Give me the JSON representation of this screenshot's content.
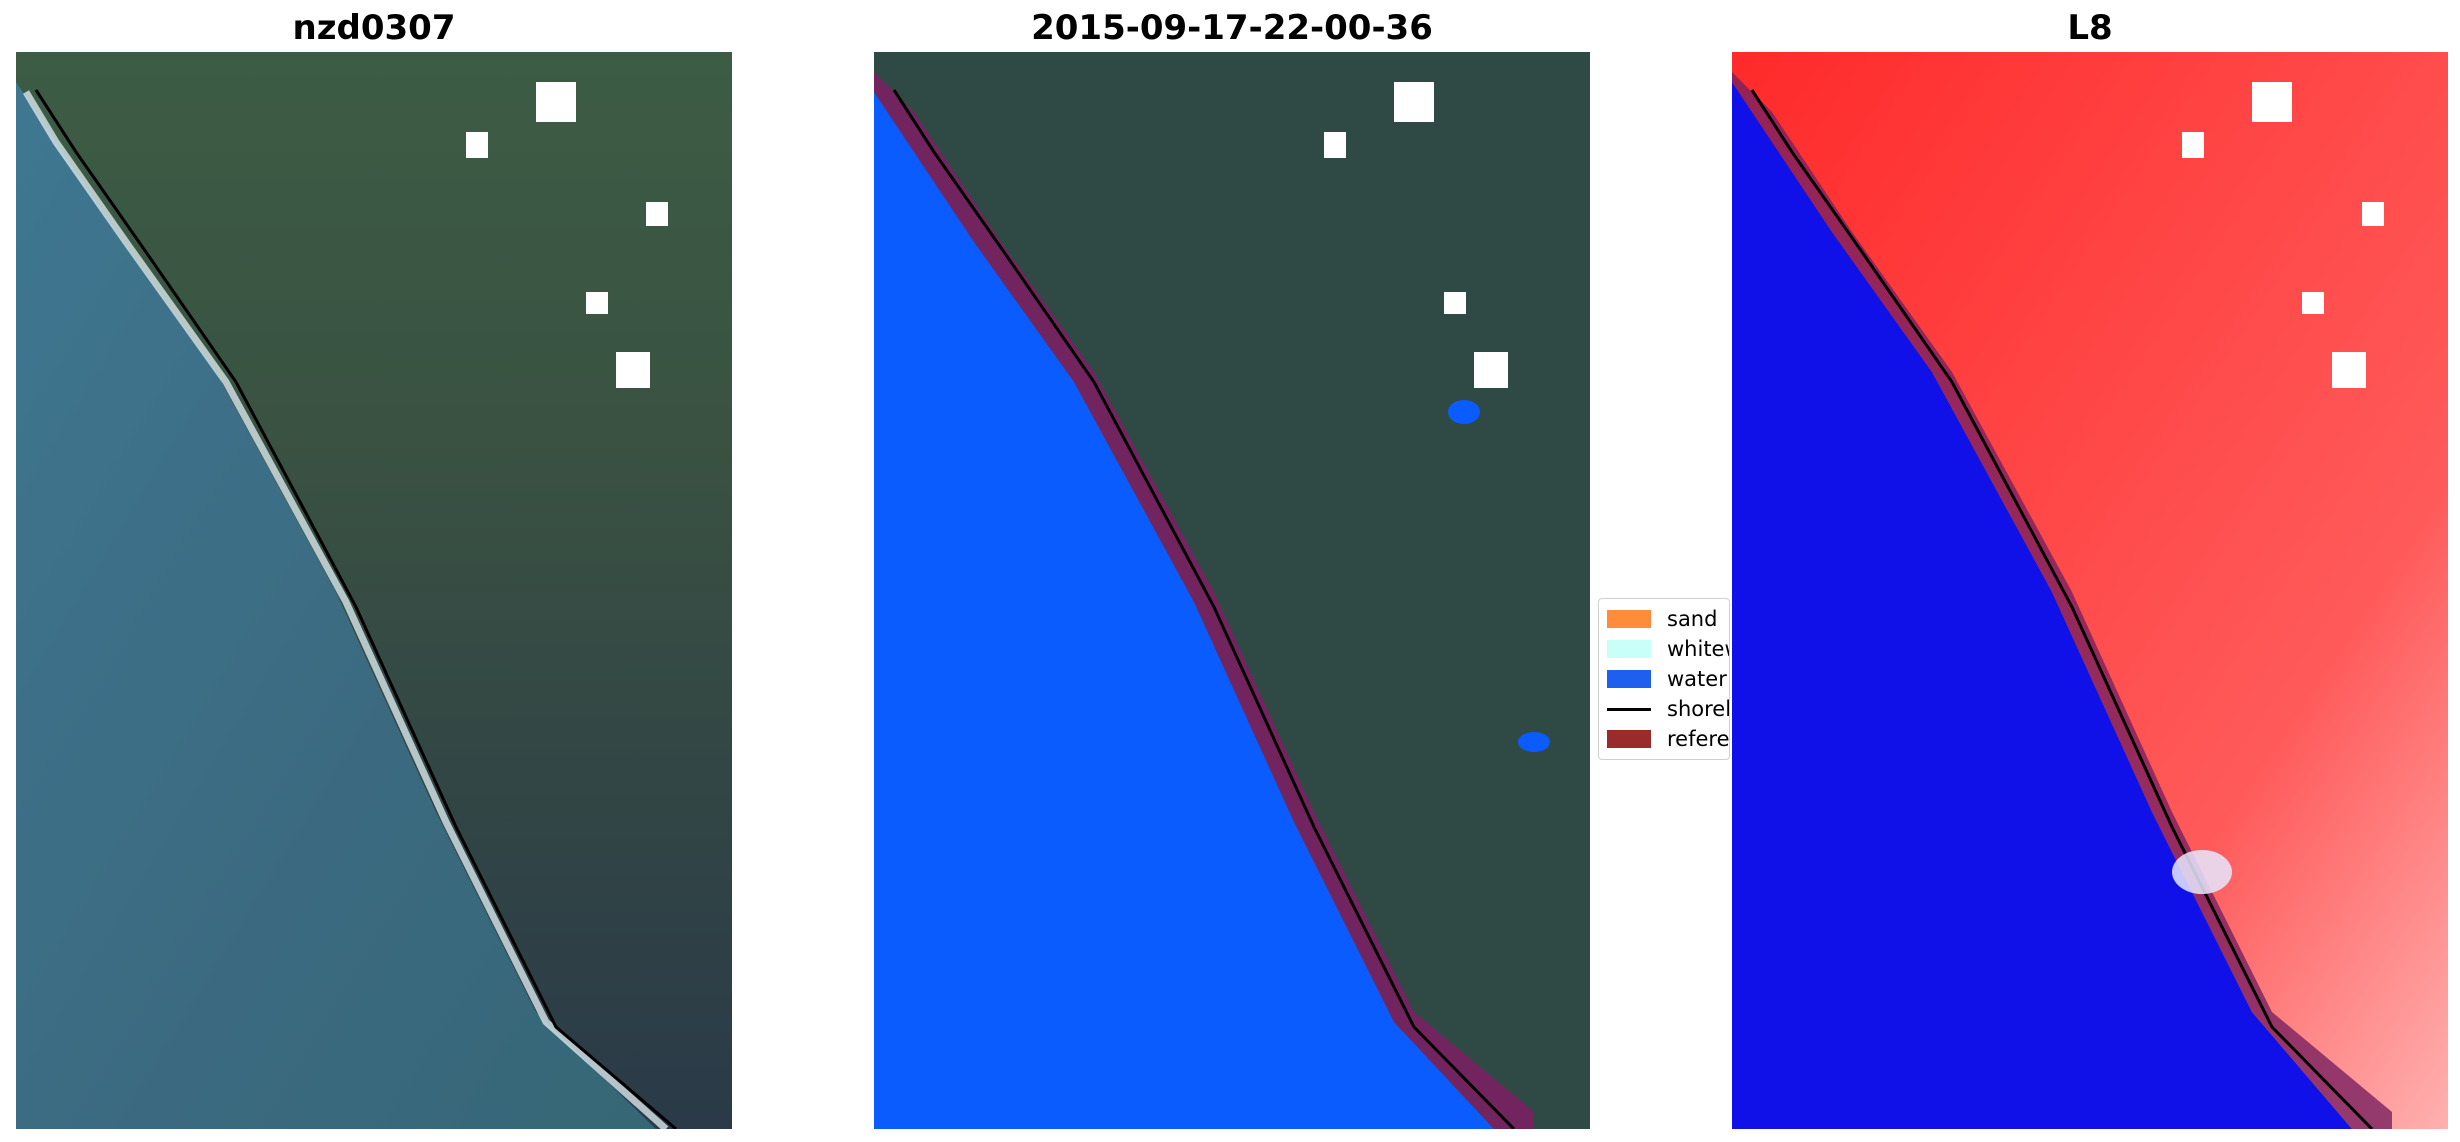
{
  "panels": [
    {
      "title": "nzd0307"
    },
    {
      "title": "2015-09-17-22-00-36"
    },
    {
      "title": "L8"
    }
  ],
  "legend": {
    "items": [
      {
        "label": "sand",
        "color": "#ff8c3a",
        "kind": "patch"
      },
      {
        "label": "whitew",
        "color": "#c8fff8",
        "kind": "patch"
      },
      {
        "label": "water",
        "color": "#1f5ff0",
        "kind": "patch"
      },
      {
        "label": "shorel",
        "color": "#000000",
        "kind": "line"
      },
      {
        "label": "referer",
        "color": "#9a2b2b",
        "kind": "patch"
      }
    ]
  },
  "colors": {
    "ocean": "#3e6f86",
    "land": "#2f4a45",
    "water_class": "#0a5cff",
    "reference_band": "#7a2060",
    "l8_water": "#1010e8",
    "l8_land": "#ff2a2a"
  }
}
